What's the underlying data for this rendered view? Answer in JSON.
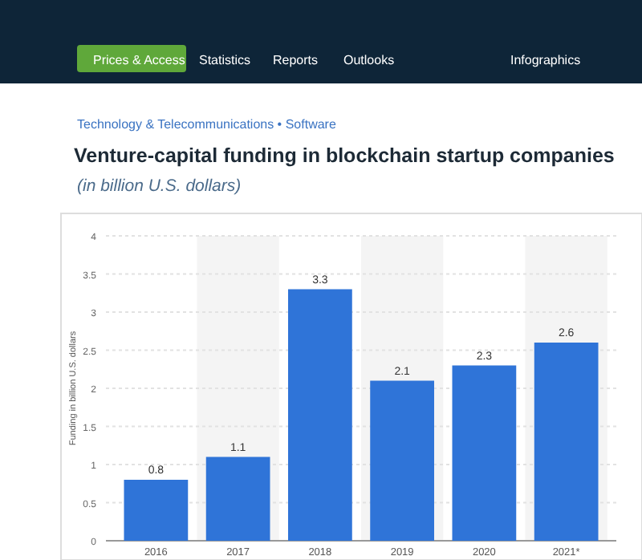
{
  "chart_data": {
    "type": "bar",
    "title": "Venture-capital funding in blockchain startup companies",
    "subtitle": "(in billion U.S. dollars)",
    "ylabel": "Funding in billion U.S. dollars",
    "annotations": [
      "Prices & Access",
      "Statistics",
      "Reports",
      "Outlooks",
      "Infographics",
      "Technology & Telecommunications • Software"
    ],
    "categories": [
      "2016",
      "2017",
      "2018",
      "2019",
      "2020",
      "2021*"
    ],
    "values": [
      0.8,
      1.1,
      3.3,
      2.1,
      2.3,
      2.6
    ],
    "color": "#2f74d8",
    "ylim": [
      0,
      4
    ],
    "yticks": [
      0,
      0.5,
      1,
      1.5,
      2,
      2.5,
      3,
      3.5,
      4
    ],
    "grid": "y",
    "data_labels": true
  }
}
